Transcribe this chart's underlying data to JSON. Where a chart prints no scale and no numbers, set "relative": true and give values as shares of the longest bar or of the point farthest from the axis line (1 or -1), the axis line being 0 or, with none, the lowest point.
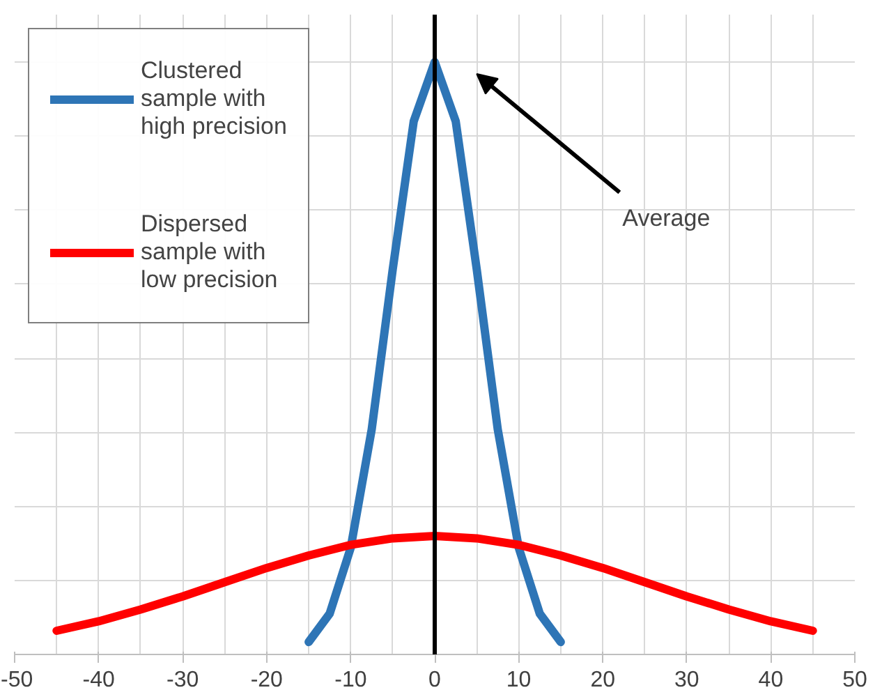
{
  "chart_data": {
    "type": "line",
    "relative": true,
    "xlim": [
      -50,
      50
    ],
    "xticks": [
      -50,
      -40,
      -30,
      -20,
      -10,
      0,
      10,
      20,
      30,
      40,
      50
    ],
    "grid": true,
    "legend": "top left",
    "marker": "none",
    "line_style": "solid",
    "series": [
      {
        "name": "Clustered sample with high precision",
        "color": "#2e75b6",
        "x": [
          -15,
          -12.5,
          -10,
          -7.5,
          -5,
          -2.5,
          0,
          2.5,
          5,
          7.5,
          10,
          12.5,
          15
        ],
        "values": [
          0.021,
          0.069,
          0.18,
          0.38,
          0.65,
          0.9,
          1,
          0.9,
          0.65,
          0.38,
          0.18,
          0.069,
          0.021
        ]
      },
      {
        "name": "Dispersed sample with low precision",
        "color": "#ff0000",
        "x": [
          -45,
          -40,
          -35,
          -30,
          -25,
          -20,
          -15,
          -10,
          -5,
          0,
          5,
          10,
          15,
          20,
          25,
          30,
          35,
          40,
          45
        ],
        "values": [
          0.04,
          0.056,
          0.076,
          0.098,
          0.122,
          0.146,
          0.167,
          0.185,
          0.196,
          0.2,
          0.196,
          0.185,
          0.167,
          0.146,
          0.122,
          0.098,
          0.076,
          0.056,
          0.04
        ]
      }
    ],
    "ref_lines": [
      {
        "axis": "x",
        "value": 0,
        "color": "#000000"
      }
    ],
    "annotations": [
      "Average"
    ]
  }
}
